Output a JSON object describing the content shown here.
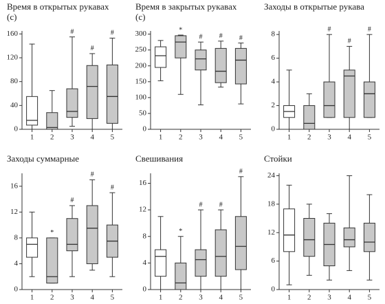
{
  "chart_data": [
    {
      "type": "box",
      "title": "Время в открытых рукавах (с)",
      "categories": [
        "1",
        "2",
        "3",
        "4",
        "5"
      ],
      "min": [
        0,
        0,
        5,
        0,
        0
      ],
      "q1": [
        7,
        0,
        20,
        18,
        10
      ],
      "median": [
        15,
        3,
        30,
        72,
        55
      ],
      "q3": [
        55,
        28,
        68,
        107,
        108
      ],
      "max": [
        143,
        65,
        155,
        127,
        153
      ],
      "colors": [
        "#ffffff",
        "#c8c8c8",
        "#c8c8c8",
        "#c8c8c8",
        "#c8c8c8"
      ],
      "marks": [
        null,
        null,
        "#",
        "#",
        "#"
      ],
      "ylim": [
        0,
        165
      ],
      "yticks": [
        0,
        40,
        80,
        120,
        160
      ]
    },
    {
      "type": "box",
      "title": "Время в закрытых рукавах (с)",
      "categories": [
        "1",
        "2",
        "3",
        "4",
        "5"
      ],
      "min": [
        153,
        110,
        77,
        133,
        80
      ],
      "q1": [
        195,
        225,
        187,
        147,
        143
      ],
      "median": [
        232,
        275,
        222,
        183,
        218
      ],
      "q3": [
        260,
        295,
        250,
        255,
        255
      ],
      "max": [
        280,
        297,
        275,
        278,
        272
      ],
      "colors": [
        "#ffffff",
        "#c8c8c8",
        "#c8c8c8",
        "#c8c8c8",
        "#c8c8c8"
      ],
      "marks": [
        null,
        "*",
        "#",
        "#",
        "#"
      ],
      "ylim": [
        0,
        310
      ],
      "yticks": [
        0,
        50,
        100,
        150,
        200,
        250,
        300
      ]
    },
    {
      "type": "box",
      "title": "Заходы в открытые рукава",
      "categories": [
        "1",
        "2",
        "3",
        "4",
        "5"
      ],
      "min": [
        0,
        0,
        1,
        0,
        1
      ],
      "q1": [
        1,
        0,
        1,
        1,
        1
      ],
      "median": [
        1.5,
        0.5,
        2,
        4.5,
        3
      ],
      "q3": [
        2,
        2,
        4,
        5,
        4
      ],
      "max": [
        5,
        3,
        8,
        7,
        8
      ],
      "colors": [
        "#ffffff",
        "#c8c8c8",
        "#c8c8c8",
        "#c8c8c8",
        "#c8c8c8"
      ],
      "marks": [
        null,
        null,
        "#",
        "#",
        "#"
      ],
      "ylim": [
        0,
        8.3
      ],
      "yticks": [
        0,
        2,
        4,
        6,
        8
      ]
    },
    {
      "type": "box",
      "title": "Заходы суммарные",
      "categories": [
        "1",
        "2",
        "3",
        "4",
        "5"
      ],
      "min": [
        2,
        1,
        2,
        3,
        2
      ],
      "q1": [
        5,
        1,
        6,
        4,
        5
      ],
      "median": [
        7,
        2,
        7,
        9.5,
        7.5
      ],
      "q3": [
        8,
        8,
        11,
        13,
        10
      ],
      "max": [
        12,
        8,
        13,
        17,
        15
      ],
      "colors": [
        "#ffffff",
        "#c8c8c8",
        "#c8c8c8",
        "#c8c8c8",
        "#c8c8c8"
      ],
      "marks": [
        null,
        "*",
        "#",
        "#",
        "#"
      ],
      "ylim": [
        0,
        18
      ],
      "yticks": [
        0,
        4,
        8,
        12,
        16
      ]
    },
    {
      "type": "box",
      "title": "Свешивания",
      "categories": [
        "1",
        "2",
        "3",
        "4",
        "5"
      ],
      "min": [
        0,
        0,
        0,
        0,
        0
      ],
      "q1": [
        2,
        0,
        2,
        2,
        3
      ],
      "median": [
        5,
        1,
        4.5,
        5,
        6.5
      ],
      "q3": [
        6,
        4,
        6,
        9,
        11
      ],
      "max": [
        11,
        8,
        12,
        12,
        17
      ],
      "colors": [
        "#ffffff",
        "#c8c8c8",
        "#c8c8c8",
        "#c8c8c8",
        "#c8c8c8"
      ],
      "marks": [
        null,
        "*",
        "#",
        "#",
        "#"
      ],
      "ylim": [
        0,
        17.5
      ],
      "yticks": [
        0,
        4,
        8,
        12,
        16
      ]
    },
    {
      "type": "box",
      "title": "Стойки",
      "categories": [
        "1",
        "2",
        "3",
        "4",
        "5"
      ],
      "min": [
        1,
        3,
        2,
        4,
        2
      ],
      "q1": [
        8,
        7,
        5,
        9,
        8
      ],
      "median": [
        11.5,
        10.5,
        9.5,
        10.5,
        10
      ],
      "q3": [
        17,
        15,
        14,
        13,
        14
      ],
      "max": [
        22,
        18,
        16,
        24,
        20
      ],
      "colors": [
        "#ffffff",
        "#c8c8c8",
        "#c8c8c8",
        "#c8c8c8",
        "#c8c8c8"
      ],
      "marks": [
        null,
        null,
        null,
        null,
        null
      ],
      "ylim": [
        0,
        24.5
      ],
      "yticks": [
        0,
        6,
        12,
        18,
        24
      ]
    }
  ]
}
